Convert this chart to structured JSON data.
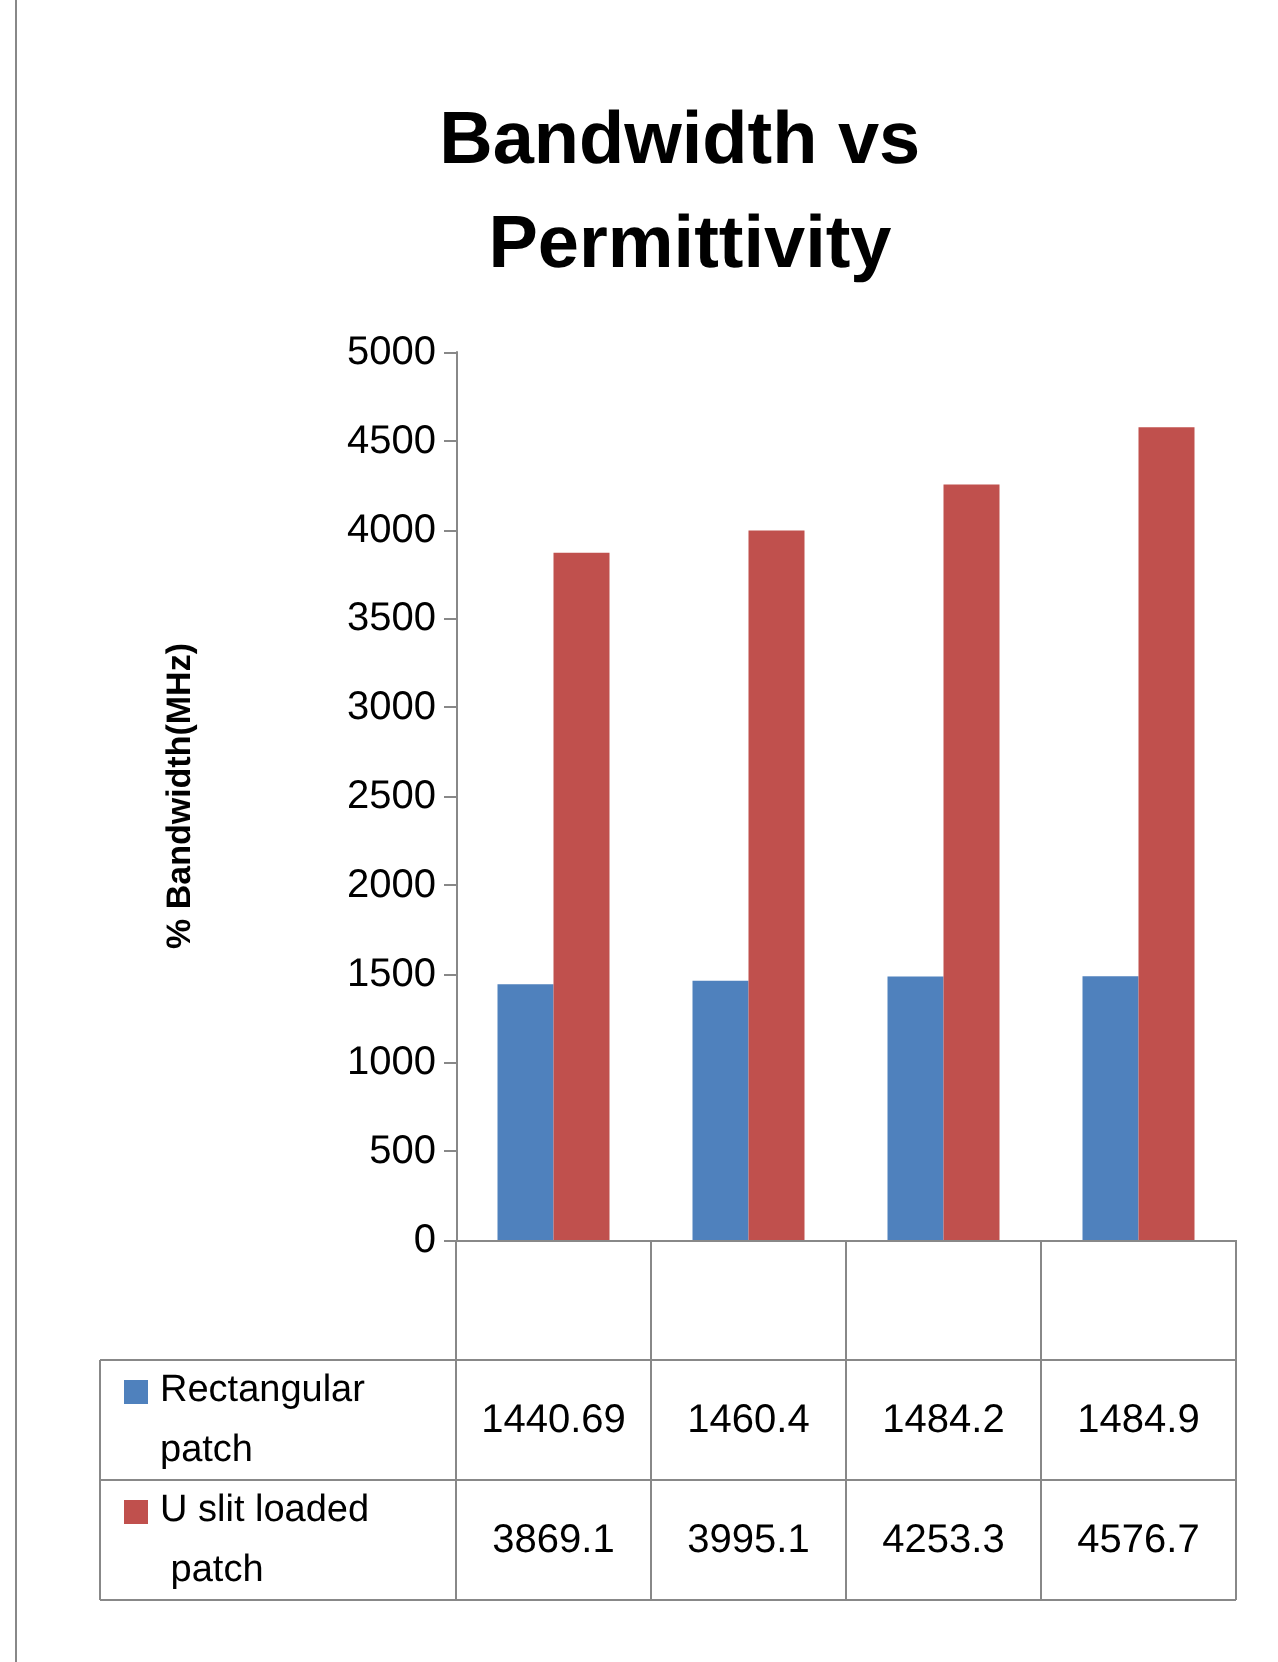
{
  "chart_data": {
    "type": "bar",
    "title": "Bandwidth vs Permittivity",
    "ylabel": "% Bandwidth(MHz)",
    "categories": [
      null,
      null,
      null,
      null
    ],
    "series": [
      {
        "name": "Rectangular patch",
        "color": "#4f81bd",
        "values": [
          1440.69,
          1460.4,
          1484.2,
          1484.9
        ]
      },
      {
        "name": "U slit loaded patch",
        "color": "#c0504d",
        "values": [
          3869.1,
          3995.1,
          4253.3,
          4576.7
        ]
      }
    ],
    "ylim": [
      0,
      5000
    ],
    "yticks": [
      0,
      500,
      1000,
      1500,
      2000,
      2500,
      3000,
      3500,
      4000,
      4500,
      5000
    ],
    "grid": false,
    "legend": "bottom",
    "data_labels": true
  }
}
